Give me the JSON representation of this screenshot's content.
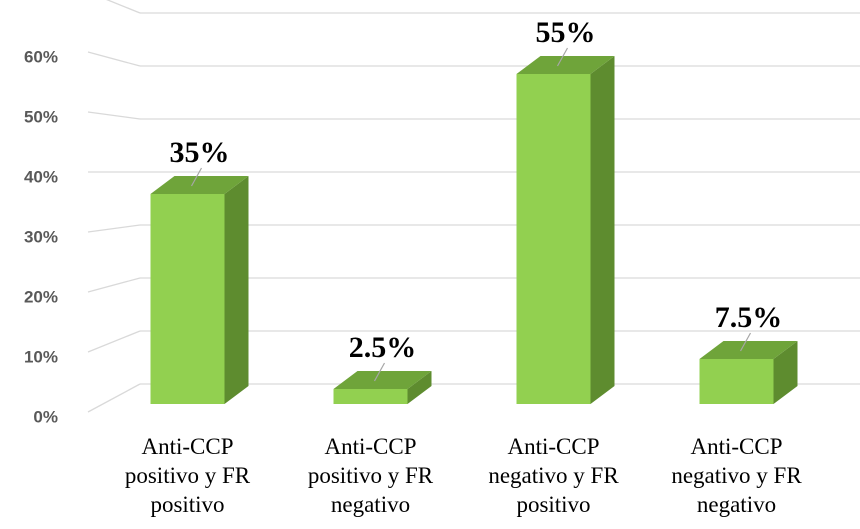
{
  "chart_data": {
    "type": "bar3d",
    "categories": [
      "Anti-CCP positivo y FR positivo",
      "Anti-CCP positivo y FR negativo",
      "Anti-CCP negativo y FR positivo",
      "Anti-CCP negativo y FR negativo"
    ],
    "values": [
      35,
      2.5,
      55,
      7.5
    ],
    "value_labels": [
      "35%",
      "2.5%",
      "55%",
      "7.5%"
    ],
    "color": "#92d050",
    "ylim": [
      0,
      70
    ],
    "yticks": [
      {
        "value": 0,
        "label": "0%"
      },
      {
        "value": 10,
        "label": "10%"
      },
      {
        "value": 20,
        "label": "20%"
      },
      {
        "value": 30,
        "label": "30%"
      },
      {
        "value": 40,
        "label": "40%"
      },
      {
        "value": 50,
        "label": "50%"
      },
      {
        "value": 60,
        "label": "60%"
      }
    ],
    "grid": true
  }
}
